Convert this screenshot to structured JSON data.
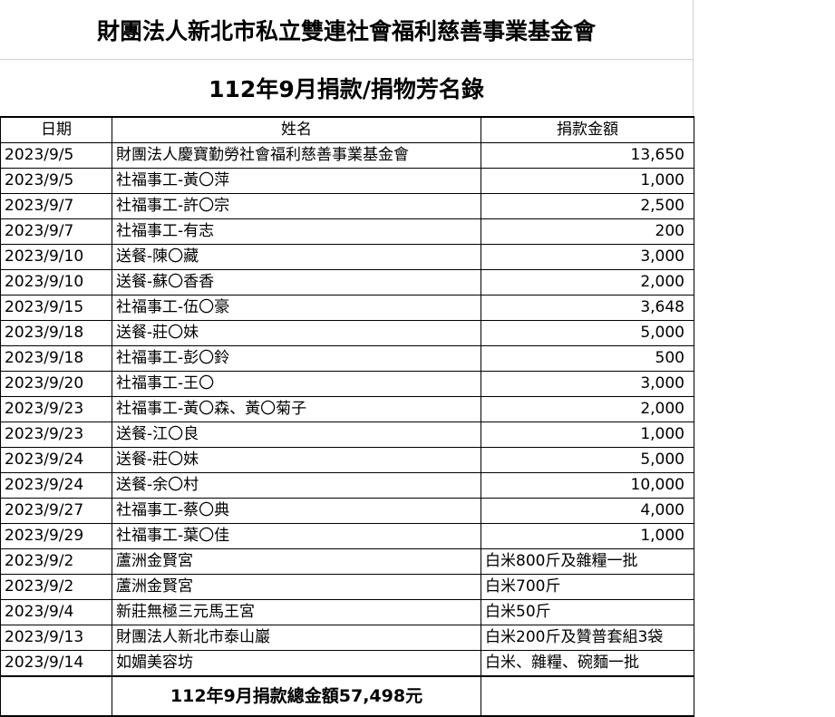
{
  "title": "財團法人新北市私立雙連社會福利慈善事業基金會",
  "subtitle": "112年9月捐款/捐物芳名錄",
  "headers": {
    "date": "日期",
    "name": "姓名",
    "amount": "捐款金額"
  },
  "rows": [
    {
      "date": "2023/9/5",
      "name": "財團法人慶寶勤勞社會福利慈善事業基金會",
      "amount": "13,650"
    },
    {
      "date": "2023/9/5",
      "name": "社福事工-黃〇萍",
      "amount": "1,000"
    },
    {
      "date": "2023/9/7",
      "name": "社福事工-許〇宗",
      "amount": "2,500"
    },
    {
      "date": "2023/9/7",
      "name": "社福事工-有志",
      "amount": "200"
    },
    {
      "date": "2023/9/10",
      "name": "送餐-陳〇藏",
      "amount": "3,000"
    },
    {
      "date": "2023/9/10",
      "name": "送餐-蘇〇香香",
      "amount": "2,000"
    },
    {
      "date": "2023/9/15",
      "name": "社福事工-伍〇豪",
      "amount": "3,648"
    },
    {
      "date": "2023/9/18",
      "name": "送餐-莊〇妹",
      "amount": "5,000"
    },
    {
      "date": "2023/9/18",
      "name": "社福事工-彭〇鈴",
      "amount": "500"
    },
    {
      "date": "2023/9/20",
      "name": "社福事工-王〇",
      "amount": "3,000"
    },
    {
      "date": "2023/9/23",
      "name": "社福事工-黃〇森、黃〇菊子",
      "amount": "2,000"
    },
    {
      "date": "2023/9/23",
      "name": "送餐-江〇良",
      "amount": "1,000"
    },
    {
      "date": "2023/9/24",
      "name": "送餐-莊〇妹",
      "amount": "5,000"
    },
    {
      "date": "2023/9/24",
      "name": "送餐-余〇村",
      "amount": "10,000"
    },
    {
      "date": "2023/9/27",
      "name": "社福事工-蔡〇典",
      "amount": "4,000"
    },
    {
      "date": "2023/9/29",
      "name": "社福事工-葉〇佳",
      "amount": "1,000"
    },
    {
      "date": "2023/9/2",
      "name": "蘆洲金賢宮",
      "item": "白米800斤及雜糧一批"
    },
    {
      "date": "2023/9/2",
      "name": "蘆洲金賢宮",
      "item": "白米700斤"
    },
    {
      "date": "2023/9/4",
      "name": "新莊無極三元馬王宮",
      "item": "白米50斤"
    },
    {
      "date": "2023/9/13",
      "name": "財團法人新北市泰山巖",
      "item": "白米200斤及贊普套組3袋"
    },
    {
      "date": "2023/9/14",
      "name": "如媚美容坊",
      "item": "白米、雜糧、碗麵一批"
    }
  ],
  "total": "112年9月捐款總金額57,498元"
}
